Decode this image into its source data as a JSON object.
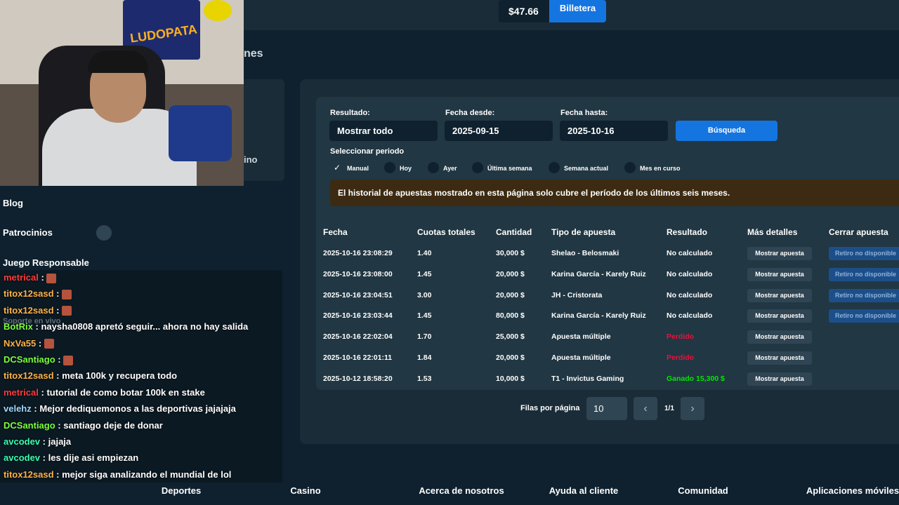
{
  "header": {
    "balance": "$47.66",
    "wallet_button": "Billetera"
  },
  "sidebar": {
    "partial_title": "nes",
    "partial_item": "ino",
    "items": [
      "Blog",
      "Patrocinios",
      "Juego Responsable"
    ],
    "faded": "Soporte en vivo"
  },
  "webcam": {
    "poster": "LUDOPATA"
  },
  "filters": {
    "result_label": "Resultado:",
    "result_value": "Mostrar todo",
    "from_label": "Fecha desde:",
    "from_value": "2025-09-15",
    "to_label": "Fecha hasta:",
    "to_value": "2025-10-16",
    "search_button": "Búsqueda",
    "period_label": "Seleccionar periodo",
    "periods": [
      "Manual",
      "Hoy",
      "Ayer",
      "Última semana",
      "Semana actual",
      "Mes en curso"
    ],
    "selected_period": 0
  },
  "notice": "El historial de apuestas mostrado en esta página solo cubre el período de los últimos seis meses.",
  "table": {
    "headers": [
      "Fecha",
      "Cuotas totales",
      "Cantidad",
      "Tipo de apuesta",
      "Resultado",
      "Más detalles",
      "Cerrar apuesta"
    ],
    "rows": [
      {
        "date": "2025-10-16 23:08:29",
        "odds": "1.40",
        "amount": "30,000 $",
        "type": "Shelao - Belosmaki",
        "result": "No calculado",
        "result_color": "#ffffff",
        "details": "Mostrar apuesta",
        "close": "Retiro no disponible"
      },
      {
        "date": "2025-10-16 23:08:00",
        "odds": "1.45",
        "amount": "20,000 $",
        "type": "Karina García - Karely Ruiz",
        "result": "No calculado",
        "result_color": "#ffffff",
        "details": "Mostrar apuesta",
        "close": "Retiro no disponible"
      },
      {
        "date": "2025-10-16 23:04:51",
        "odds": "3.00",
        "amount": "20,000 $",
        "type": "JH - Cristorata",
        "result": "No calculado",
        "result_color": "#ffffff",
        "details": "Mostrar apuesta",
        "close": "Retiro no disponible"
      },
      {
        "date": "2025-10-16 23:03:44",
        "odds": "1.45",
        "amount": "80,000 $",
        "type": "Karina García - Karely Ruiz",
        "result": "No calculado",
        "result_color": "#ffffff",
        "details": "Mostrar apuesta",
        "close": "Retiro no disponible"
      },
      {
        "date": "2025-10-16 22:02:04",
        "odds": "1.70",
        "amount": "25,000 $",
        "type": "Apuesta múltiple",
        "result": "Perdido",
        "result_color": "#e9113c",
        "details": "Mostrar apuesta"
      },
      {
        "date": "2025-10-16 22:01:11",
        "odds": "1.84",
        "amount": "20,000 $",
        "type": "Apuesta múltiple",
        "result": "Perdido",
        "result_color": "#e9113c",
        "details": "Mostrar apuesta"
      },
      {
        "date": "2025-10-12 18:58:20",
        "odds": "1.53",
        "amount": "10,000 $",
        "type": "T1 - Invictus Gaming",
        "result": "Ganado 15,300 $",
        "result_color": "#00e701",
        "details": "Mostrar apuesta"
      }
    ]
  },
  "pagination": {
    "label": "Filas por página",
    "rows_per_page": "10",
    "page": "1/1"
  },
  "footer": [
    "Deportes",
    "Casino",
    "Acerca de nosotros",
    "Ayuda al cliente",
    "Comunidad",
    "Aplicaciones móviles"
  ],
  "chat": [
    {
      "user": "metrical",
      "color": "#ff3b3b"
    },
    {
      "user": "titox12sasd",
      "color": "#ffb347"
    },
    {
      "user": "titox12sasd",
      "color": "#ffb347"
    },
    {
      "user": "BotRix",
      "color": "#7cff3b",
      "text": "naysha0808 apretó seguir... ahora no hay salida"
    },
    {
      "user": "NxVa55",
      "color": "#ffb347"
    },
    {
      "user": "DCSantiago",
      "color": "#7cff3b"
    },
    {
      "user": "titox12sasd",
      "color": "#ffb347",
      "text": "meta 100k y recupera todo"
    },
    {
      "user": "metrical",
      "color": "#ff3b3b",
      "text": "tutorial de como botar 100k en stake"
    },
    {
      "user": "velehz",
      "color": "#9fd8ff",
      "text": "Mejor dediquemonos a las deportivas jajajaja"
    },
    {
      "user": "DCSantiago",
      "color": "#7cff3b",
      "text": "santiago deje de donar"
    },
    {
      "user": "avcodev",
      "color": "#3bffb0",
      "text": "jajaja"
    },
    {
      "user": "avcodev",
      "color": "#3bffb0",
      "text": "les dije asi empiezan"
    },
    {
      "user": "titox12sasd",
      "color": "#ffb347",
      "text": "mejor siga analizando el mundial de lol"
    }
  ]
}
